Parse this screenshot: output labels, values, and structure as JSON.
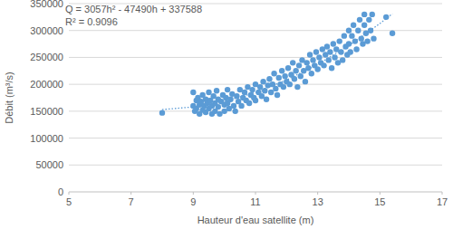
{
  "chart_data": {
    "type": "scatter",
    "x_label": "Hauteur d'eau satellite (m)",
    "y_label": "Débit  (m³/s)",
    "annotations": [
      "Q = 3057h² - 47490h + 337588",
      "R² = 0.9096"
    ],
    "xlim": [
      5,
      17
    ],
    "xticks": [
      5,
      7,
      9,
      11,
      13,
      15,
      17
    ],
    "ylim": [
      0,
      350000
    ],
    "yticks": [
      0,
      50000,
      100000,
      150000,
      200000,
      250000,
      300000,
      350000
    ],
    "grid": true,
    "series": [
      {
        "color": "#5b9bd5",
        "marker": "circle",
        "type": "scatter",
        "x": [
          9.0,
          9.0,
          9.05,
          9.1,
          9.1,
          9.15,
          9.2,
          9.2,
          9.25,
          9.3,
          9.3,
          9.35,
          9.4,
          9.4,
          9.45,
          9.5,
          9.5,
          9.55,
          9.6,
          9.6,
          9.65,
          9.7,
          9.7,
          9.75,
          9.8,
          9.8,
          9.85,
          9.9,
          9.95,
          10.0,
          10.0,
          10.05,
          10.1,
          10.1,
          10.15,
          10.2,
          10.25,
          10.3,
          10.35,
          10.4,
          10.45,
          10.5,
          10.55,
          10.6,
          10.65,
          10.7,
          10.75,
          10.8,
          10.85,
          10.9,
          10.95,
          11.0,
          11.0,
          11.1,
          11.15,
          11.2,
          11.25,
          11.3,
          11.35,
          11.4,
          11.45,
          11.5,
          11.55,
          11.6,
          11.65,
          11.7,
          11.75,
          11.8,
          11.85,
          11.9,
          11.95,
          12.0,
          12.05,
          12.1,
          12.15,
          12.2,
          12.25,
          12.3,
          12.35,
          12.4,
          12.45,
          12.5,
          12.55,
          12.6,
          12.65,
          12.7,
          12.75,
          12.8,
          12.85,
          12.9,
          12.95,
          13.0,
          13.05,
          13.1,
          13.15,
          13.2,
          13.25,
          13.3,
          13.35,
          13.4,
          13.45,
          13.5,
          13.55,
          13.6,
          13.65,
          13.7,
          13.75,
          13.8,
          13.85,
          13.9,
          13.95,
          14.0,
          14.0,
          14.05,
          14.1,
          14.15,
          14.2,
          14.25,
          14.3,
          14.35,
          14.4,
          14.45,
          14.5,
          14.5,
          14.55,
          14.6,
          14.65,
          14.7,
          14.75,
          14.8,
          8.0,
          15.2,
          15.4
        ],
        "values": [
          160000,
          185000,
          150000,
          170000,
          155000,
          175000,
          162000,
          145000,
          168000,
          180000,
          152000,
          160000,
          172000,
          148000,
          165000,
          185000,
          155000,
          170000,
          160000,
          145000,
          178000,
          165000,
          150000,
          188000,
          172000,
          158000,
          145000,
          168000,
          180000,
          162000,
          150000,
          175000,
          190000,
          165000,
          155000,
          172000,
          182000,
          160000,
          150000,
          178000,
          168000,
          190000,
          160000,
          175000,
          185000,
          170000,
          195000,
          165000,
          180000,
          190000,
          175000,
          200000,
          170000,
          185000,
          195000,
          178000,
          205000,
          188000,
          172000,
          198000,
          210000,
          185000,
          200000,
          220000,
          192000,
          180000,
          212000,
          200000,
          225000,
          195000,
          215000,
          205000,
          230000,
          200000,
          218000,
          240000,
          210000,
          225000,
          195000,
          235000,
          215000,
          245000,
          225000,
          205000,
          240000,
          230000,
          255000,
          220000,
          245000,
          235000,
          260000,
          228000,
          250000,
          240000,
          265000,
          235000,
          255000,
          270000,
          245000,
          260000,
          230000,
          275000,
          250000,
          265000,
          240000,
          280000,
          260000,
          245000,
          290000,
          270000,
          255000,
          300000,
          275000,
          260000,
          290000,
          310000,
          280000,
          265000,
          300000,
          320000,
          285000,
          275000,
          310000,
          330000,
          295000,
          280000,
          320000,
          300000,
          330000,
          285000,
          147000,
          325000,
          295000
        ]
      },
      {
        "color": "#5b9bd5",
        "type": "line",
        "line_style": "dotted",
        "x": [
          8,
          9,
          10,
          11,
          12,
          13,
          14,
          15,
          15.4
        ],
        "values": [
          153000,
          158000,
          168000,
          185000,
          208000,
          237000,
          272000,
          313000,
          331000
        ]
      }
    ]
  }
}
